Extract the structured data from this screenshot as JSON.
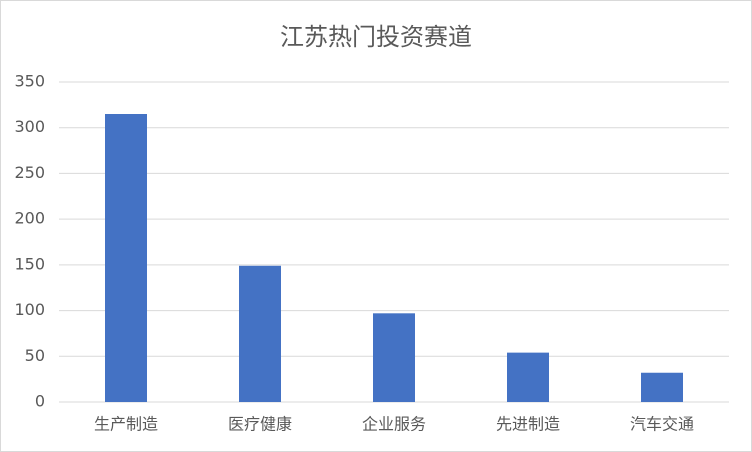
{
  "chart_data": {
    "type": "bar",
    "title": "江苏热门投资赛道",
    "categories": [
      "生产制造",
      "医疗健康",
      "企业服务",
      "先进制造",
      "汽车交通"
    ],
    "values": [
      315,
      149,
      97,
      54,
      32
    ],
    "color": "#4472c4",
    "ylim": [
      0,
      350
    ],
    "yticks": [
      0,
      50,
      100,
      150,
      200,
      250,
      300,
      350
    ],
    "grid": true
  }
}
